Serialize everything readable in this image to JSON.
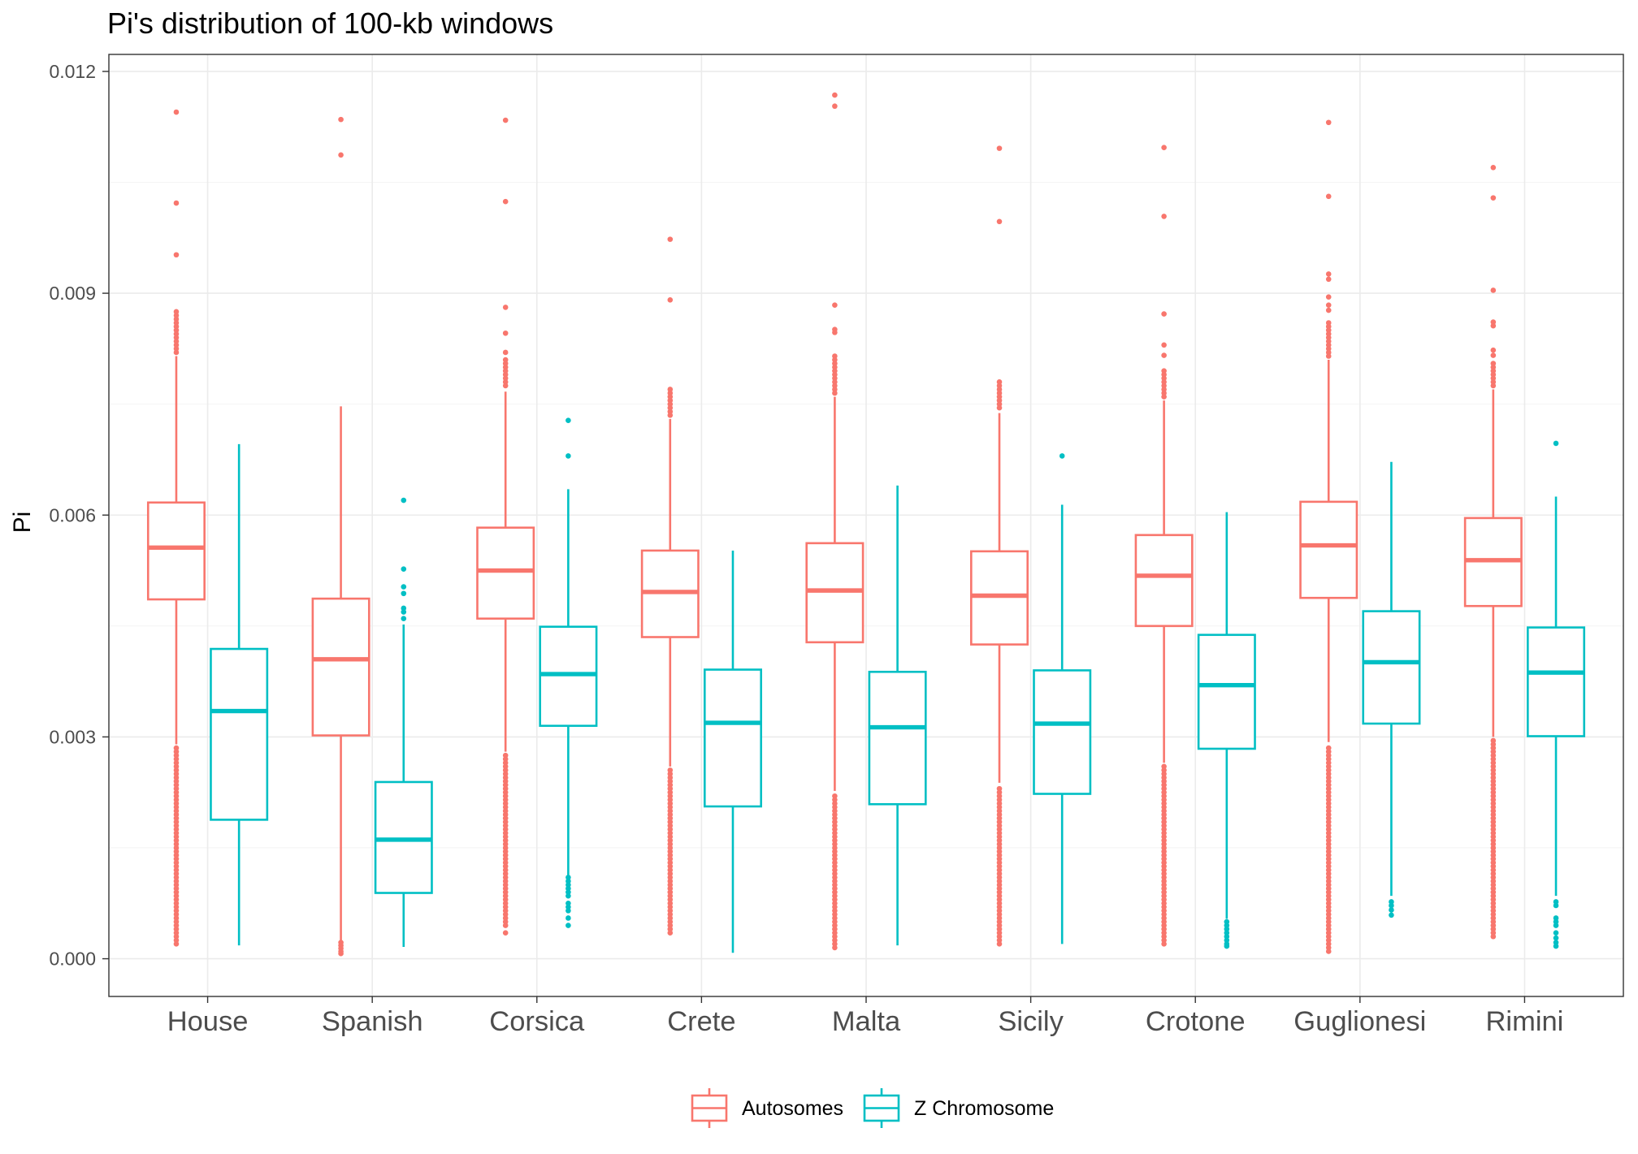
{
  "chart_data": {
    "type": "boxplot",
    "title": "Pi's distribution of 100-kb windows",
    "xlabel": "",
    "ylabel": "Pi",
    "ylim": [
      -0.00051,
      0.01223
    ],
    "yticks": {
      "values": [
        0,
        0.003,
        0.006,
        0.009,
        0.012
      ],
      "labels": [
        "0.000",
        "0.003",
        "0.006",
        "0.009",
        "0.012"
      ]
    },
    "grid": true,
    "legend": "bottom",
    "categories": [
      "House",
      "Spanish",
      "Corsica",
      "Crete",
      "Malta",
      "Sicily",
      "Crotone",
      "Guglionesi",
      "Rimini"
    ],
    "series": [
      {
        "name": "Autosomes",
        "color": "#F8766D",
        "boxes": [
          {
            "lower": 0.0029,
            "q1": 0.00486,
            "median": 0.00556,
            "q3": 0.00617,
            "upper": 0.00815,
            "outliers": [
              0.01145,
              0.01022,
              0.00952,
              0.00875,
              0.0087,
              0.00865,
              0.0086,
              0.00855,
              0.0085,
              0.00845,
              0.0084,
              0.00835,
              0.0083,
              0.00825,
              0.0082,
              0.00285,
              0.0028,
              0.00275,
              0.0027,
              0.00265,
              0.0026,
              0.00255,
              0.0025,
              0.00245,
              0.0024,
              0.00235,
              0.0023,
              0.00225,
              0.0022,
              0.00215,
              0.0021,
              0.00205,
              0.002,
              0.00195,
              0.0019,
              0.00185,
              0.0018,
              0.00175,
              0.0017,
              0.00165,
              0.0016,
              0.00155,
              0.0015,
              0.00145,
              0.0014,
              0.00135,
              0.0013,
              0.00125,
              0.0012,
              0.00115,
              0.0011,
              0.00105,
              0.001,
              0.00095,
              0.0009,
              0.00085,
              0.0008,
              0.00075,
              0.0007,
              0.00065,
              0.0006,
              0.00055,
              0.0005,
              0.00045,
              0.0004,
              0.00035,
              0.0003,
              0.00025,
              0.0002
            ]
          },
          {
            "lower": 0.00025,
            "q1": 0.00302,
            "median": 0.00405,
            "q3": 0.00487,
            "upper": 0.00747,
            "outliers": [
              0.01135,
              0.01087,
              0.00022,
              0.00018,
              0.00014,
              0.0001,
              7e-05
            ]
          },
          {
            "lower": 0.0028,
            "q1": 0.0046,
            "median": 0.00525,
            "q3": 0.00583,
            "upper": 0.00767,
            "outliers": [
              0.01134,
              0.01024,
              0.00881,
              0.00846,
              0.0082,
              0.0081,
              0.00805,
              0.008,
              0.00795,
              0.0079,
              0.00785,
              0.0078,
              0.00775,
              0.00275,
              0.0027,
              0.00265,
              0.0026,
              0.00255,
              0.0025,
              0.00245,
              0.0024,
              0.00235,
              0.0023,
              0.00225,
              0.0022,
              0.00215,
              0.0021,
              0.00205,
              0.002,
              0.00195,
              0.0019,
              0.00185,
              0.0018,
              0.00175,
              0.0017,
              0.00165,
              0.0016,
              0.00155,
              0.0015,
              0.00145,
              0.0014,
              0.00135,
              0.0013,
              0.00125,
              0.0012,
              0.00115,
              0.0011,
              0.00105,
              0.001,
              0.00095,
              0.0009,
              0.00085,
              0.0008,
              0.00075,
              0.0007,
              0.00065,
              0.0006,
              0.00055,
              0.0005,
              0.00045,
              0.00035
            ]
          },
          {
            "lower": 0.0026,
            "q1": 0.00435,
            "median": 0.00496,
            "q3": 0.00552,
            "upper": 0.0073,
            "outliers": [
              0.00973,
              0.00891,
              0.0077,
              0.00765,
              0.0076,
              0.00755,
              0.0075,
              0.00745,
              0.0074,
              0.00735,
              0.00255,
              0.0025,
              0.00245,
              0.0024,
              0.00235,
              0.0023,
              0.00225,
              0.0022,
              0.00215,
              0.0021,
              0.00205,
              0.002,
              0.00195,
              0.0019,
              0.00185,
              0.0018,
              0.00175,
              0.0017,
              0.00165,
              0.0016,
              0.00155,
              0.0015,
              0.00145,
              0.0014,
              0.00135,
              0.0013,
              0.00125,
              0.0012,
              0.00115,
              0.0011,
              0.00105,
              0.001,
              0.00095,
              0.0009,
              0.00085,
              0.0008,
              0.00075,
              0.0007,
              0.00065,
              0.0006,
              0.00055,
              0.0005,
              0.00045,
              0.0004,
              0.00035
            ]
          },
          {
            "lower": 0.00227,
            "q1": 0.00428,
            "median": 0.00498,
            "q3": 0.00562,
            "upper": 0.0076,
            "outliers": [
              0.01168,
              0.01153,
              0.00884,
              0.00851,
              0.00847,
              0.00815,
              0.0081,
              0.00805,
              0.008,
              0.00795,
              0.0079,
              0.00785,
              0.0078,
              0.00775,
              0.0077,
              0.00765,
              0.0022,
              0.00215,
              0.0021,
              0.00205,
              0.002,
              0.00195,
              0.0019,
              0.00185,
              0.0018,
              0.00175,
              0.0017,
              0.00165,
              0.0016,
              0.00155,
              0.0015,
              0.00145,
              0.0014,
              0.00135,
              0.0013,
              0.00125,
              0.0012,
              0.00115,
              0.0011,
              0.00105,
              0.001,
              0.00095,
              0.0009,
              0.00085,
              0.0008,
              0.00075,
              0.0007,
              0.00065,
              0.0006,
              0.00055,
              0.0005,
              0.00045,
              0.0004,
              0.00035,
              0.0003,
              0.00025,
              0.0002,
              0.00015
            ]
          },
          {
            "lower": 0.00238,
            "q1": 0.00425,
            "median": 0.00491,
            "q3": 0.00551,
            "upper": 0.00738,
            "outliers": [
              0.01096,
              0.00997,
              0.0078,
              0.00775,
              0.0077,
              0.00765,
              0.0076,
              0.00755,
              0.0075,
              0.00745,
              0.0023,
              0.00225,
              0.0022,
              0.00215,
              0.0021,
              0.00205,
              0.002,
              0.00195,
              0.0019,
              0.00185,
              0.0018,
              0.00175,
              0.0017,
              0.00165,
              0.0016,
              0.00155,
              0.0015,
              0.00145,
              0.0014,
              0.00135,
              0.0013,
              0.00125,
              0.0012,
              0.00115,
              0.0011,
              0.00105,
              0.001,
              0.00095,
              0.0009,
              0.00085,
              0.0008,
              0.00075,
              0.0007,
              0.00065,
              0.0006,
              0.00055,
              0.0005,
              0.00045,
              0.0004,
              0.00035,
              0.0003,
              0.00025,
              0.0002
            ]
          },
          {
            "lower": 0.00265,
            "q1": 0.0045,
            "median": 0.00518,
            "q3": 0.00573,
            "upper": 0.00755,
            "outliers": [
              0.01097,
              0.01004,
              0.00872,
              0.0083,
              0.00816,
              0.00795,
              0.0079,
              0.00785,
              0.0078,
              0.00775,
              0.0077,
              0.00765,
              0.0076,
              0.0026,
              0.00255,
              0.0025,
              0.00245,
              0.0024,
              0.00235,
              0.0023,
              0.00225,
              0.0022,
              0.00215,
              0.0021,
              0.00205,
              0.002,
              0.00195,
              0.0019,
              0.00185,
              0.0018,
              0.00175,
              0.0017,
              0.00165,
              0.0016,
              0.00155,
              0.0015,
              0.00145,
              0.0014,
              0.00135,
              0.0013,
              0.00125,
              0.0012,
              0.00115,
              0.0011,
              0.00105,
              0.001,
              0.00095,
              0.0009,
              0.00085,
              0.0008,
              0.00075,
              0.0007,
              0.00065,
              0.0006,
              0.00055,
              0.0005,
              0.00045,
              0.0004,
              0.00035,
              0.0003,
              0.00025,
              0.0002
            ]
          },
          {
            "lower": 0.00293,
            "q1": 0.00488,
            "median": 0.00559,
            "q3": 0.00618,
            "upper": 0.0081,
            "outliers": [
              0.01131,
              0.01031,
              0.00926,
              0.00919,
              0.00895,
              0.00884,
              0.00877,
              0.0086,
              0.00855,
              0.0085,
              0.00845,
              0.0084,
              0.00835,
              0.0083,
              0.00825,
              0.0082,
              0.00815,
              0.00285,
              0.0028,
              0.00275,
              0.0027,
              0.00265,
              0.0026,
              0.00255,
              0.0025,
              0.00245,
              0.0024,
              0.00235,
              0.0023,
              0.00225,
              0.0022,
              0.00215,
              0.0021,
              0.00205,
              0.002,
              0.00195,
              0.0019,
              0.00185,
              0.0018,
              0.00175,
              0.0017,
              0.00165,
              0.0016,
              0.00155,
              0.0015,
              0.00145,
              0.0014,
              0.00135,
              0.0013,
              0.00125,
              0.0012,
              0.00115,
              0.0011,
              0.00105,
              0.001,
              0.00095,
              0.0009,
              0.00085,
              0.0008,
              0.00075,
              0.0007,
              0.00065,
              0.0006,
              0.00055,
              0.0005,
              0.00045,
              0.0004,
              0.00035,
              0.0003,
              0.00025,
              0.0002,
              0.00015,
              0.0001
            ]
          },
          {
            "lower": 0.003,
            "q1": 0.00477,
            "median": 0.00539,
            "q3": 0.00596,
            "upper": 0.0077,
            "outliers": [
              0.0107,
              0.01029,
              0.00904,
              0.00861,
              0.00856,
              0.00823,
              0.00816,
              0.00805,
              0.008,
              0.00795,
              0.0079,
              0.00785,
              0.0078,
              0.00775,
              0.00295,
              0.0029,
              0.00285,
              0.0028,
              0.00275,
              0.0027,
              0.00265,
              0.0026,
              0.00255,
              0.0025,
              0.00245,
              0.0024,
              0.00235,
              0.0023,
              0.00225,
              0.0022,
              0.00215,
              0.0021,
              0.00205,
              0.002,
              0.00195,
              0.0019,
              0.00185,
              0.0018,
              0.00175,
              0.0017,
              0.00165,
              0.0016,
              0.00155,
              0.0015,
              0.00145,
              0.0014,
              0.00135,
              0.0013,
              0.00125,
              0.0012,
              0.00115,
              0.0011,
              0.00105,
              0.001,
              0.00095,
              0.0009,
              0.00085,
              0.0008,
              0.00075,
              0.0007,
              0.00065,
              0.0006,
              0.00055,
              0.0005,
              0.00045,
              0.0004,
              0.00035,
              0.0003
            ]
          }
        ]
      },
      {
        "name": "Z Chromosome",
        "color": "#00BFC4",
        "boxes": [
          {
            "lower": 0.00018,
            "q1": 0.00188,
            "median": 0.00335,
            "q3": 0.00419,
            "upper": 0.00696,
            "outliers": []
          },
          {
            "lower": 0.00016,
            "q1": 0.00089,
            "median": 0.00161,
            "q3": 0.00239,
            "upper": 0.00452,
            "outliers": [
              0.0062,
              0.00527,
              0.00503,
              0.00494,
              0.00474,
              0.00469,
              0.0046
            ]
          },
          {
            "lower": 0.00113,
            "q1": 0.00315,
            "median": 0.00385,
            "q3": 0.00449,
            "upper": 0.00635,
            "outliers": [
              0.00728,
              0.0068,
              0.0011,
              0.00105,
              0.001,
              0.00095,
              0.0009,
              0.00085,
              0.00075,
              0.0007,
              0.00065,
              0.00055,
              0.00045
            ]
          },
          {
            "lower": 8e-05,
            "q1": 0.00206,
            "median": 0.00319,
            "q3": 0.00391,
            "upper": 0.00552,
            "outliers": []
          },
          {
            "lower": 0.00018,
            "q1": 0.00209,
            "median": 0.00313,
            "q3": 0.00388,
            "upper": 0.0064,
            "outliers": []
          },
          {
            "lower": 0.0002,
            "q1": 0.00223,
            "median": 0.00318,
            "q3": 0.0039,
            "upper": 0.00614,
            "outliers": [
              0.0068
            ]
          },
          {
            "lower": 0.00054,
            "q1": 0.00284,
            "median": 0.0037,
            "q3": 0.00438,
            "upper": 0.00604,
            "outliers": [
              0.0005,
              0.00045,
              0.0004,
              0.00035,
              0.0003,
              0.00025,
              0.0002,
              0.00017
            ]
          },
          {
            "lower": 0.00085,
            "q1": 0.00318,
            "median": 0.00401,
            "q3": 0.0047,
            "upper": 0.00672,
            "outliers": [
              0.00077,
              0.00072,
              0.00066,
              0.00059
            ]
          },
          {
            "lower": 0.00085,
            "q1": 0.00301,
            "median": 0.00387,
            "q3": 0.00448,
            "upper": 0.00625,
            "outliers": [
              0.00697,
              0.00077,
              0.00072,
              0.00055,
              0.0005,
              0.00045,
              0.00035,
              0.00028,
              0.00022,
              0.00017
            ]
          }
        ]
      }
    ]
  }
}
